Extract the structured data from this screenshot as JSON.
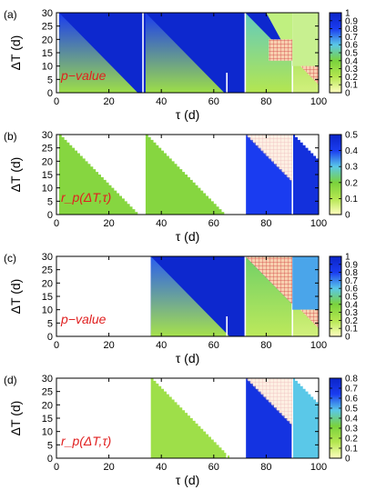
{
  "chart_data": [
    {
      "type": "heatmap",
      "panel_label": "(a)",
      "xlabel": "τ (d)",
      "ylabel": "ΔT (d)",
      "xlim": [
        0,
        100
      ],
      "ylim": [
        0,
        30
      ],
      "xticks": [
        "0",
        "20",
        "40",
        "60",
        "80",
        "100"
      ],
      "yticks": [
        "0",
        "5",
        "10",
        "15",
        "20",
        "25",
        "30"
      ],
      "colorbar": {
        "range": [
          0,
          1
        ],
        "ticks": [
          "1",
          "0.9",
          "0.8",
          "0.7",
          "0.6",
          "0.5",
          "0.4",
          "0.3",
          "0.2",
          "0.1",
          "0"
        ],
        "colors": [
          "#ffffc0",
          "#b4e650",
          "#7ad23c",
          "#5ac8e8",
          "#1a3cf0",
          "#0b24c8"
        ]
      },
      "annotation": "p−value",
      "wedges": [
        {
          "x_start": 1,
          "x_end": 33,
          "p_top": 0.8,
          "p_base": 0.28
        },
        {
          "x_start": 34,
          "x_end": 72,
          "p_top": 0.8,
          "p_base": 0.28
        },
        {
          "x_start": 72,
          "x_end": 90,
          "p_top": 0.55,
          "p_base": 0.2
        },
        {
          "x_start": 90,
          "x_end": 100,
          "p_top": 0.35,
          "p_base": 0.12
        }
      ],
      "gaps": [
        33,
        65,
        72,
        90
      ],
      "hatched_region": "upper-right"
    },
    {
      "type": "heatmap",
      "panel_label": "(b)",
      "xlabel": "τ (d)",
      "ylabel": "ΔT (d)",
      "xlim": [
        0,
        100
      ],
      "ylim": [
        0,
        30
      ],
      "xticks": [
        "0",
        "20",
        "40",
        "60",
        "80",
        "100"
      ],
      "yticks": [
        "0",
        "5",
        "10",
        "15",
        "20",
        "25",
        "30"
      ],
      "colorbar": {
        "range": [
          0,
          0.5
        ],
        "ticks": [
          "0.5",
          "0.4",
          "0.3",
          "0.2",
          "0.1",
          "0"
        ],
        "colors": [
          "#ffffc0",
          "#b4e650",
          "#7ad23c",
          "#5ac8e8",
          "#1a3cf0",
          "#0b24c8"
        ]
      },
      "annotation": "r_p(ΔT,τ)",
      "corr_values": [
        {
          "x_start": 1,
          "x_end": 33,
          "r": 0.18
        },
        {
          "x_start": 34,
          "x_end": 72,
          "r": 0.18
        },
        {
          "x_start": 72,
          "x_end": 90,
          "r": 0.4
        },
        {
          "x_start": 90,
          "x_end": 100,
          "r": 0.45
        }
      ],
      "gaps": [
        33,
        65,
        72,
        90
      ],
      "hatched_region": "upper-right"
    },
    {
      "type": "heatmap",
      "panel_label": "(c)",
      "xlabel": "τ (d)",
      "ylabel": "ΔT (d)",
      "xlim": [
        0,
        100
      ],
      "ylim": [
        0,
        30
      ],
      "xticks": [
        "0",
        "20",
        "40",
        "60",
        "80",
        "100"
      ],
      "yticks": [
        "0",
        "5",
        "10",
        "15",
        "20",
        "25",
        "30"
      ],
      "colorbar": {
        "range": [
          0,
          1
        ],
        "ticks": [
          "1",
          "0.9",
          "0.8",
          "0.7",
          "0.6",
          "0.5",
          "0.4",
          "0.3",
          "0.2",
          "0.1",
          "0"
        ],
        "colors": [
          "#ffffc0",
          "#b4e650",
          "#7ad23c",
          "#5ac8e8",
          "#1a3cf0",
          "#0b24c8"
        ]
      },
      "annotation": "p−value",
      "wedges": [
        {
          "x_start": 36,
          "x_end": 72,
          "p_top": 0.75,
          "p_base": 0.25
        },
        {
          "x_start": 72,
          "x_end": 90,
          "p_top": 0.45,
          "p_base": 0.18
        },
        {
          "x_start": 90,
          "x_end": 100,
          "p_top": 0.35,
          "p_base": 0.12
        }
      ],
      "gaps": [
        65,
        72,
        90
      ],
      "hatched_region": "upper-right"
    },
    {
      "type": "heatmap",
      "panel_label": "(d)",
      "xlabel": "τ (d)",
      "ylabel": "ΔT (d)",
      "xlim": [
        0,
        100
      ],
      "ylim": [
        0,
        30
      ],
      "xticks": [
        "0",
        "20",
        "40",
        "60",
        "80",
        "100"
      ],
      "yticks": [
        "0",
        "5",
        "10",
        "15",
        "20",
        "25",
        "30"
      ],
      "colorbar": {
        "range": [
          0,
          0.8
        ],
        "ticks": [
          "0.8",
          "0.7",
          "0.6",
          "0.5",
          "0.4",
          "0.3",
          "0.2",
          "0.1",
          "0"
        ],
        "colors": [
          "#ffffc0",
          "#b4e650",
          "#7ad23c",
          "#5ac8e8",
          "#1a3cf0",
          "#0b24c8"
        ]
      },
      "annotation": "r_p(ΔT,τ)",
      "corr_values": [
        {
          "x_start": 36,
          "x_end": 72,
          "r": 0.22
        },
        {
          "x_start": 72,
          "x_end": 90,
          "r": 0.7
        },
        {
          "x_start": 90,
          "x_end": 100,
          "r": 0.48
        }
      ],
      "gaps": [
        65,
        72,
        90
      ],
      "hatched_region": "upper-right"
    }
  ]
}
